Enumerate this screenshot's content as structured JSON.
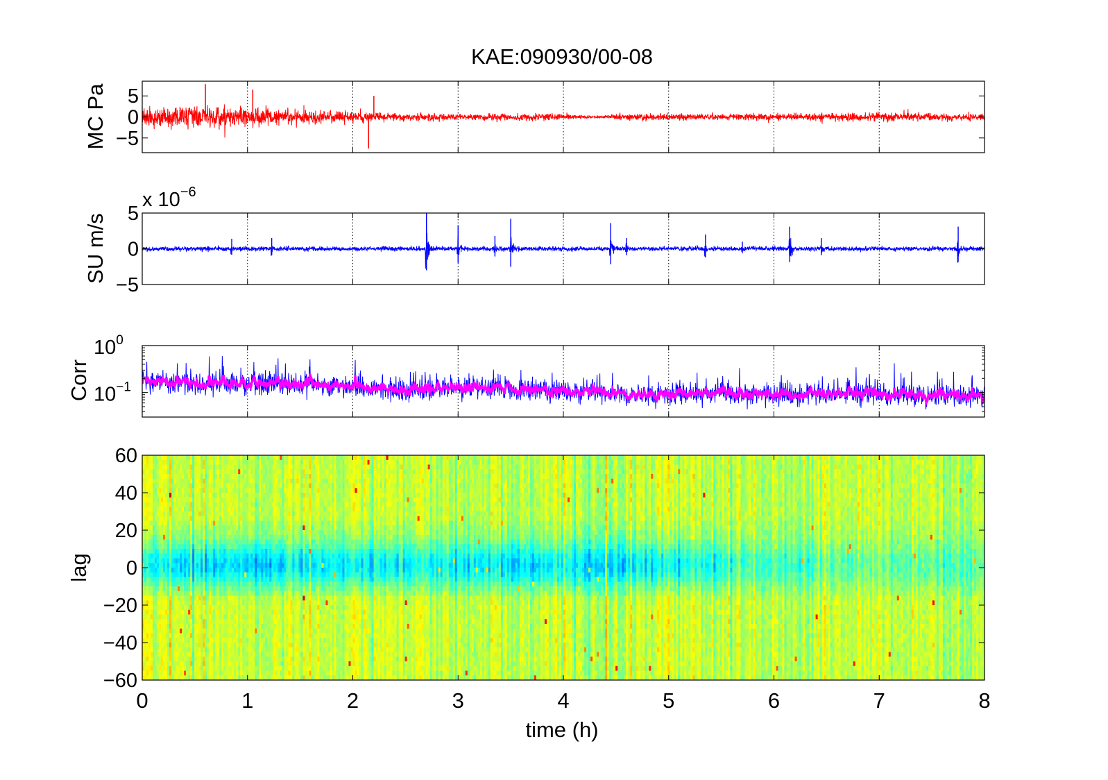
{
  "title": "KAE:090930/00-08",
  "xlabel": "time (h)",
  "x_ticks": [
    "0",
    "1",
    "2",
    "3",
    "4",
    "5",
    "6",
    "7",
    "8"
  ],
  "chart_data": [
    {
      "type": "line",
      "ylabel": "MC Pa",
      "xlim": [
        0,
        8
      ],
      "ylim": [
        -8.5,
        8.5
      ],
      "y_ticks": [
        "5",
        "0",
        "−5"
      ],
      "grid": "vertical dotted",
      "color": "#ff0000",
      "amplitude_envelope": {
        "x": [
          0,
          0.5,
          1,
          1.5,
          2,
          2.5,
          3,
          3.5,
          4,
          4.3,
          4.4,
          4.5,
          5,
          5.5,
          6,
          6.5,
          7,
          7.5,
          8
        ],
        "values": [
          3.5,
          4,
          3.2,
          2.6,
          1.8,
          1.4,
          1.2,
          1.3,
          1.1,
          0.3,
          0.5,
          1.2,
          1.2,
          1.1,
          1.3,
          1.5,
          1.5,
          1.4,
          1.2
        ]
      },
      "spikes": [
        {
          "x": 0.6,
          "value": 7.8
        },
        {
          "x": 1.05,
          "value": 6.5
        },
        {
          "x": 2.15,
          "value": -7.5
        },
        {
          "x": 2.2,
          "value": 5.0
        }
      ]
    },
    {
      "type": "line",
      "ylabel": "SU m/s",
      "scale_label": "x 10",
      "scale_exponent": "−6",
      "xlim": [
        0,
        8
      ],
      "ylim": [
        -5,
        5
      ],
      "y_ticks": [
        "5",
        "0",
        "−5"
      ],
      "grid": "vertical dotted",
      "color": "#0000ff",
      "baseline_amplitude": 0.3,
      "events": [
        {
          "x": 0.85,
          "value": 1.4
        },
        {
          "x": 1.23,
          "value": 1.5
        },
        {
          "x": 2.7,
          "value": 5.0
        },
        {
          "x": 3.0,
          "value": 3.3
        },
        {
          "x": 3.35,
          "value": 1.8
        },
        {
          "x": 3.5,
          "value": 4.2
        },
        {
          "x": 4.45,
          "value": 3.6
        },
        {
          "x": 4.6,
          "value": 1.5
        },
        {
          "x": 5.35,
          "value": 2.0
        },
        {
          "x": 5.7,
          "value": 1.0
        },
        {
          "x": 6.15,
          "value": 3.1
        },
        {
          "x": 6.45,
          "value": 1.5
        },
        {
          "x": 7.75,
          "value": 3.1
        }
      ]
    },
    {
      "type": "line",
      "ylabel": "Corr",
      "yscale": "log",
      "xlim": [
        0,
        8
      ],
      "ylim": [
        0.03,
        1
      ],
      "y_ticks": [
        {
          "base": "10",
          "exp": "0",
          "value": 1
        },
        {
          "base": "10",
          "exp": "−1",
          "value": 0.1
        }
      ],
      "grid": "vertical dotted",
      "series": [
        {
          "color": "#0000ff",
          "smooth": false
        },
        {
          "color": "#ff00ff",
          "smooth": true
        }
      ],
      "trend": {
        "x": [
          0,
          0.5,
          1,
          1.5,
          2,
          2.5,
          3,
          3.5,
          4,
          4.5,
          5,
          5.5,
          6,
          6.5,
          7,
          7.5,
          8
        ],
        "values": [
          0.17,
          0.16,
          0.15,
          0.15,
          0.13,
          0.11,
          0.13,
          0.11,
          0.11,
          0.09,
          0.09,
          0.1,
          0.09,
          0.09,
          0.09,
          0.09,
          0.08
        ]
      }
    },
    {
      "type": "heatmap",
      "ylabel": "lag",
      "xlim": [
        0,
        8
      ],
      "ylim": [
        -60,
        60
      ],
      "y_ticks": [
        "60",
        "40",
        "20",
        "0",
        "−20",
        "−40",
        "−60"
      ],
      "colormap": "jet",
      "description_values": {
        "lag_zero_band": [
          -20,
          20
        ],
        "band_strength_by_hour": [
          0.8,
          0.8,
          0.75,
          0.7,
          0.75,
          0.7,
          0.4,
          0.35,
          0.3
        ]
      }
    }
  ]
}
